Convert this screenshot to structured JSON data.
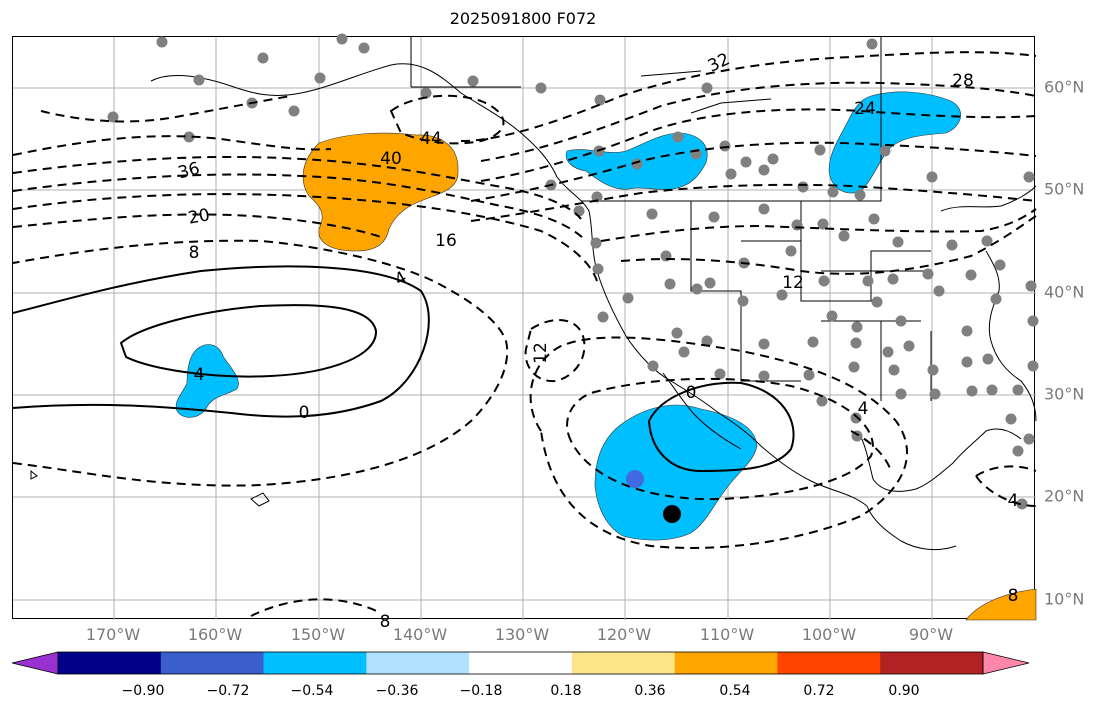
{
  "title": "2025091800 F072",
  "axes": {
    "lon_labels": [
      "170°W",
      "160°W",
      "150°W",
      "140°W",
      "130°W",
      "120°W",
      "110°W",
      "100°W",
      "90°W"
    ],
    "lat_labels": [
      "60°N",
      "50°N",
      "40°N",
      "30°N",
      "20°N",
      "10°N"
    ]
  },
  "contour_labels": [
    "32",
    "28",
    "24",
    "44",
    "40",
    "36",
    "20",
    "16",
    "8",
    "4",
    "12",
    "12",
    "4",
    "0",
    "0",
    "4",
    "4",
    "8",
    "8"
  ],
  "colorbar": {
    "ticks": [
      "−0.90",
      "−0.72",
      "−0.54",
      "−0.36",
      "−0.18",
      "0.18",
      "0.36",
      "0.54",
      "0.72",
      "0.90"
    ],
    "colors": [
      "#9b30d0",
      "#00008b",
      "#3a5fcd",
      "#00bfff",
      "#b0e2ff",
      "#ffffff",
      "#fde68a",
      "#ffa500",
      "#ff4500",
      "#b22222",
      "#ff88aa"
    ]
  },
  "colors": {
    "negative_anomaly": "#00bfff",
    "positive_anomaly": "#ffa500",
    "station_marker": "#808080",
    "gridline": "#b0b0b0"
  }
}
